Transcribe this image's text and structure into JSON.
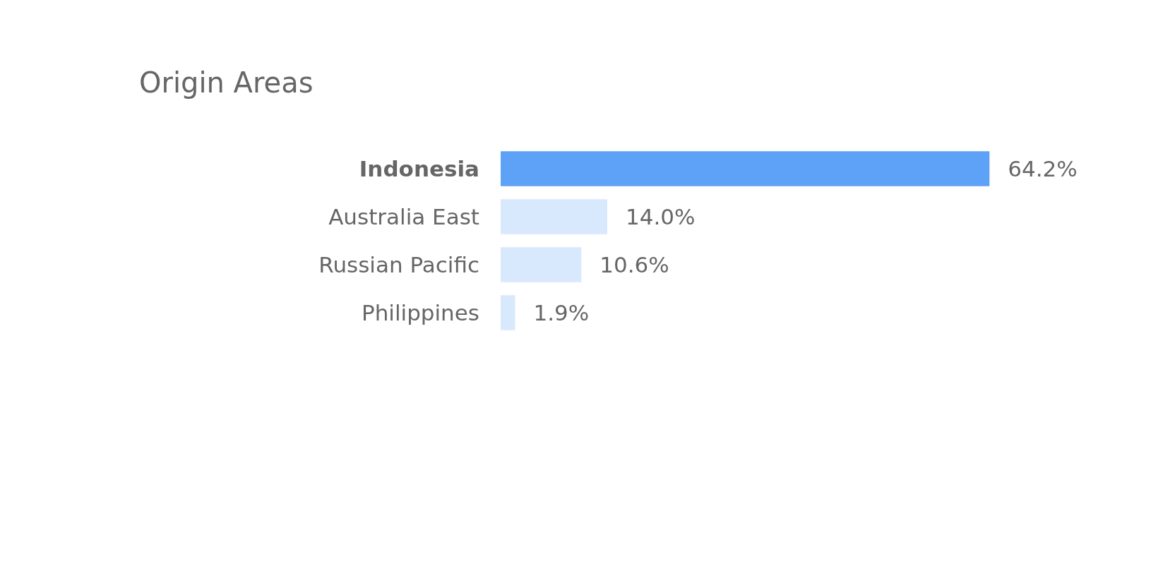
{
  "chart_data": {
    "type": "bar",
    "orientation": "horizontal",
    "title": "Origin Areas",
    "categories": [
      "Indonesia",
      "Australia East",
      "Russian Pacific",
      "Philippines"
    ],
    "values": [
      64.2,
      14.0,
      10.6,
      1.9
    ],
    "colors": [
      "#5ea2f8",
      "#d9e9fd",
      "#d9e9fd",
      "#d9e9fd"
    ],
    "value_labels": [
      "64.2%",
      "14.0%",
      "10.6%",
      "1.9%"
    ]
  }
}
